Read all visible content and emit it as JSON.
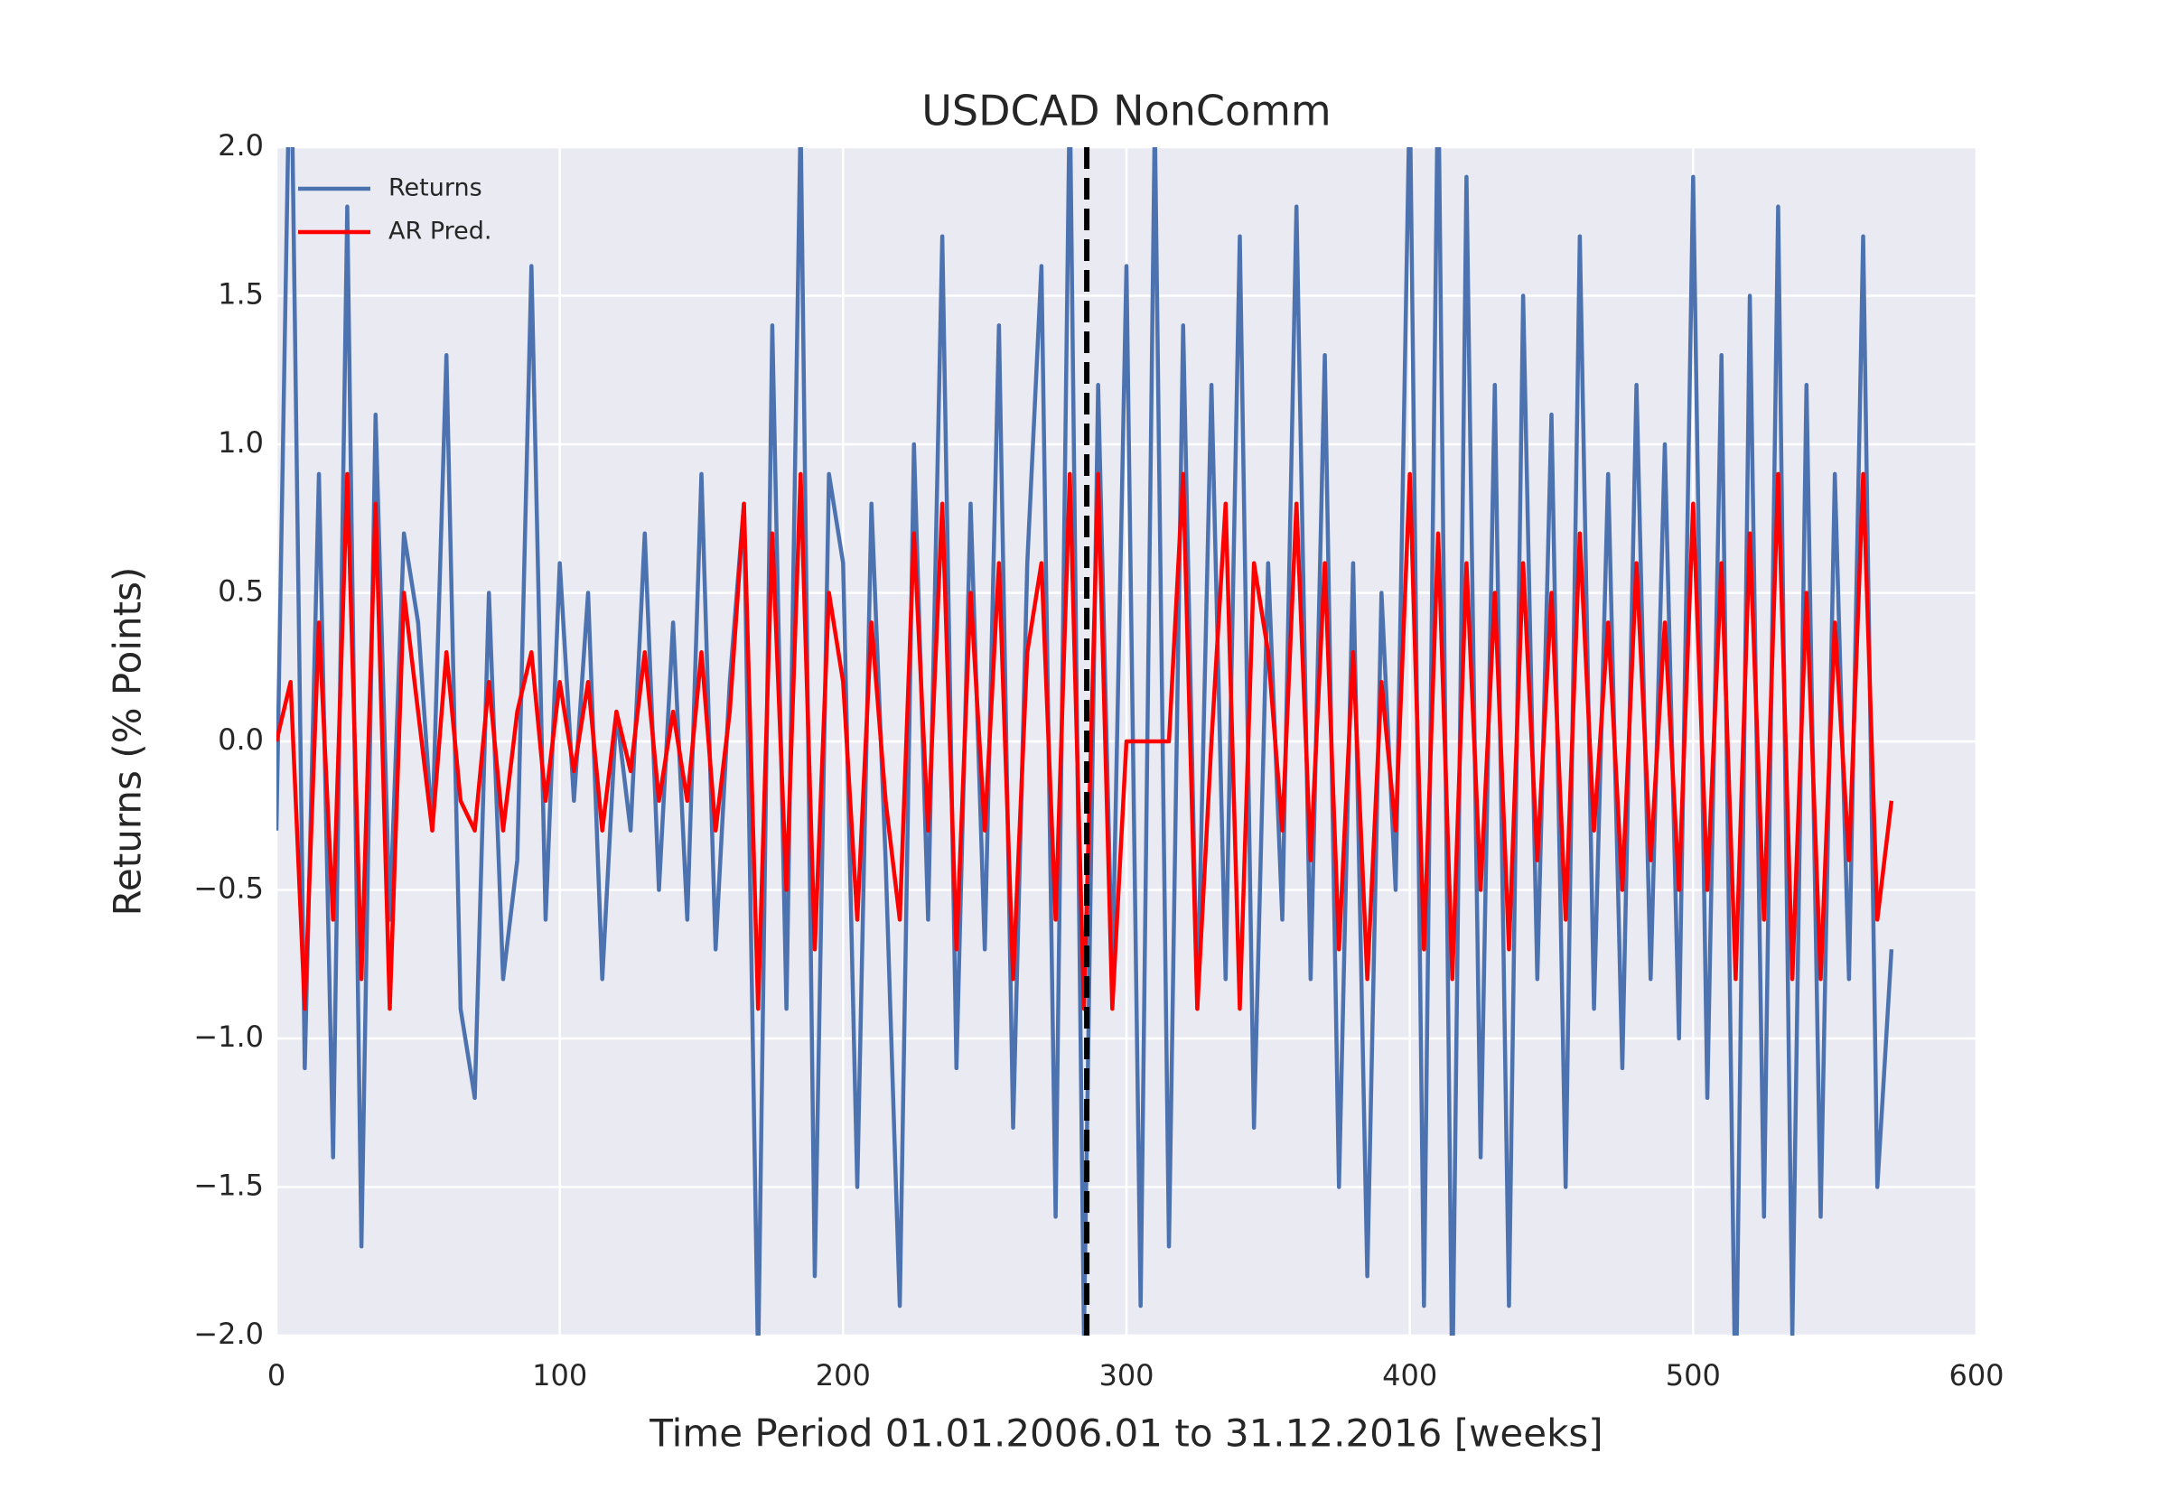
{
  "chart_data": {
    "type": "line",
    "title": "USDCAD NonComm",
    "xlabel": "Time Period 01.01.2006.01 to 31.12.2016 [weeks]",
    "ylabel": "Returns (% Points)",
    "x": [
      0,
      5,
      10,
      15,
      20,
      25,
      30,
      35,
      40,
      45,
      50,
      55,
      60,
      65,
      70,
      75,
      80,
      85,
      90,
      95,
      100,
      105,
      110,
      115,
      120,
      125,
      130,
      135,
      140,
      145,
      150,
      155,
      160,
      165,
      170,
      175,
      180,
      185,
      190,
      195,
      200,
      205,
      210,
      215,
      220,
      225,
      230,
      235,
      240,
      245,
      250,
      255,
      260,
      265,
      270,
      275,
      280,
      285,
      290,
      295,
      300,
      305,
      310,
      315,
      320,
      325,
      330,
      335,
      340,
      345,
      350,
      355,
      360,
      365,
      370,
      375,
      380,
      385,
      390,
      395,
      400,
      405,
      410,
      415,
      420,
      425,
      430,
      435,
      440,
      445,
      450,
      455,
      460,
      465,
      470,
      475,
      480,
      485,
      490,
      495,
      500,
      505,
      510,
      515,
      520,
      525,
      530,
      535,
      540,
      545,
      550,
      555,
      560,
      565,
      570
    ],
    "series": [
      {
        "name": "Returns",
        "color": "#4c72b0",
        "values": [
          -0.3,
          2.5,
          -1.1,
          0.9,
          -1.4,
          1.8,
          -1.7,
          1.1,
          -0.6,
          0.7,
          0.4,
          -0.3,
          1.3,
          -0.9,
          -1.2,
          0.5,
          -0.8,
          -0.4,
          1.6,
          -0.6,
          0.6,
          -0.2,
          0.5,
          -0.8,
          0.1,
          -0.3,
          0.7,
          -0.5,
          0.4,
          -0.6,
          0.9,
          -0.7,
          0.2,
          0.8,
          -2.1,
          1.4,
          -0.9,
          2.1,
          -1.8,
          0.9,
          0.6,
          -1.5,
          0.8,
          -0.4,
          -1.9,
          1.0,
          -0.6,
          1.7,
          -1.1,
          0.8,
          -0.7,
          1.4,
          -1.3,
          0.6,
          1.6,
          -1.6,
          2.2,
          -2.0,
          1.2,
          -0.8,
          1.6,
          -1.9,
          2.1,
          -1.7,
          1.4,
          -0.9,
          1.2,
          -0.8,
          1.7,
          -1.3,
          0.6,
          -0.6,
          1.8,
          -0.8,
          1.3,
          -1.5,
          0.6,
          -1.8,
          0.5,
          -0.5,
          2.2,
          -1.9,
          2.3,
          -2.2,
          1.9,
          -1.4,
          1.2,
          -1.9,
          1.5,
          -0.8,
          1.1,
          -1.5,
          1.7,
          -0.9,
          0.9,
          -1.1,
          1.2,
          -0.8,
          1.0,
          -1.0,
          1.9,
          -1.2,
          1.3,
          -2.3,
          1.5,
          -1.6,
          1.8,
          -2.0,
          1.2,
          -1.6,
          0.9,
          -0.8,
          1.7,
          -1.5,
          -0.7
        ]
      },
      {
        "name": "AR Pred.",
        "color": "#ff0000",
        "values": [
          0.0,
          0.2,
          -0.9,
          0.4,
          -0.6,
          0.9,
          -0.8,
          0.8,
          -0.9,
          0.5,
          0.1,
          -0.3,
          0.3,
          -0.2,
          -0.3,
          0.2,
          -0.3,
          0.1,
          0.3,
          -0.2,
          0.2,
          -0.1,
          0.2,
          -0.3,
          0.1,
          -0.1,
          0.3,
          -0.2,
          0.1,
          -0.2,
          0.3,
          -0.3,
          0.1,
          0.8,
          -0.9,
          0.7,
          -0.5,
          0.9,
          -0.7,
          0.5,
          0.2,
          -0.6,
          0.4,
          -0.2,
          -0.6,
          0.7,
          -0.3,
          0.8,
          -0.7,
          0.5,
          -0.3,
          0.6,
          -0.8,
          0.3,
          0.6,
          -0.6,
          0.9,
          -0.9,
          0.9,
          -0.9,
          0.0,
          0.0,
          0.0,
          0.0,
          0.9,
          -0.9,
          0.0,
          0.8,
          -0.9,
          0.6,
          0.3,
          -0.3,
          0.8,
          -0.4,
          0.6,
          -0.7,
          0.3,
          -0.8,
          0.2,
          -0.3,
          0.9,
          -0.7,
          0.7,
          -0.8,
          0.6,
          -0.5,
          0.5,
          -0.7,
          0.6,
          -0.4,
          0.5,
          -0.6,
          0.7,
          -0.3,
          0.4,
          -0.5,
          0.6,
          -0.4,
          0.4,
          -0.5,
          0.8,
          -0.5,
          0.6,
          -0.8,
          0.7,
          -0.6,
          0.9,
          -0.8,
          0.5,
          -0.8,
          0.4,
          -0.4,
          0.9,
          -0.6,
          -0.2
        ]
      }
    ],
    "vline": 286,
    "xlim": [
      0,
      600
    ],
    "xticks": [
      0,
      100,
      200,
      300,
      400,
      500,
      600
    ],
    "ylim": [
      -2,
      2
    ],
    "yticks": [
      {
        "value": -2,
        "label": "−2.0"
      },
      {
        "value": -1.5,
        "label": "−1.5"
      },
      {
        "value": -1,
        "label": "−1.0"
      },
      {
        "value": -0.5,
        "label": "−0.5"
      },
      {
        "value": 0,
        "label": "0.0"
      },
      0.5,
      {
        "value": 1,
        "label": "1.0"
      },
      1.5,
      {
        "value": 2,
        "label": "2.0"
      }
    ],
    "grid": true,
    "legend": "upper left"
  }
}
